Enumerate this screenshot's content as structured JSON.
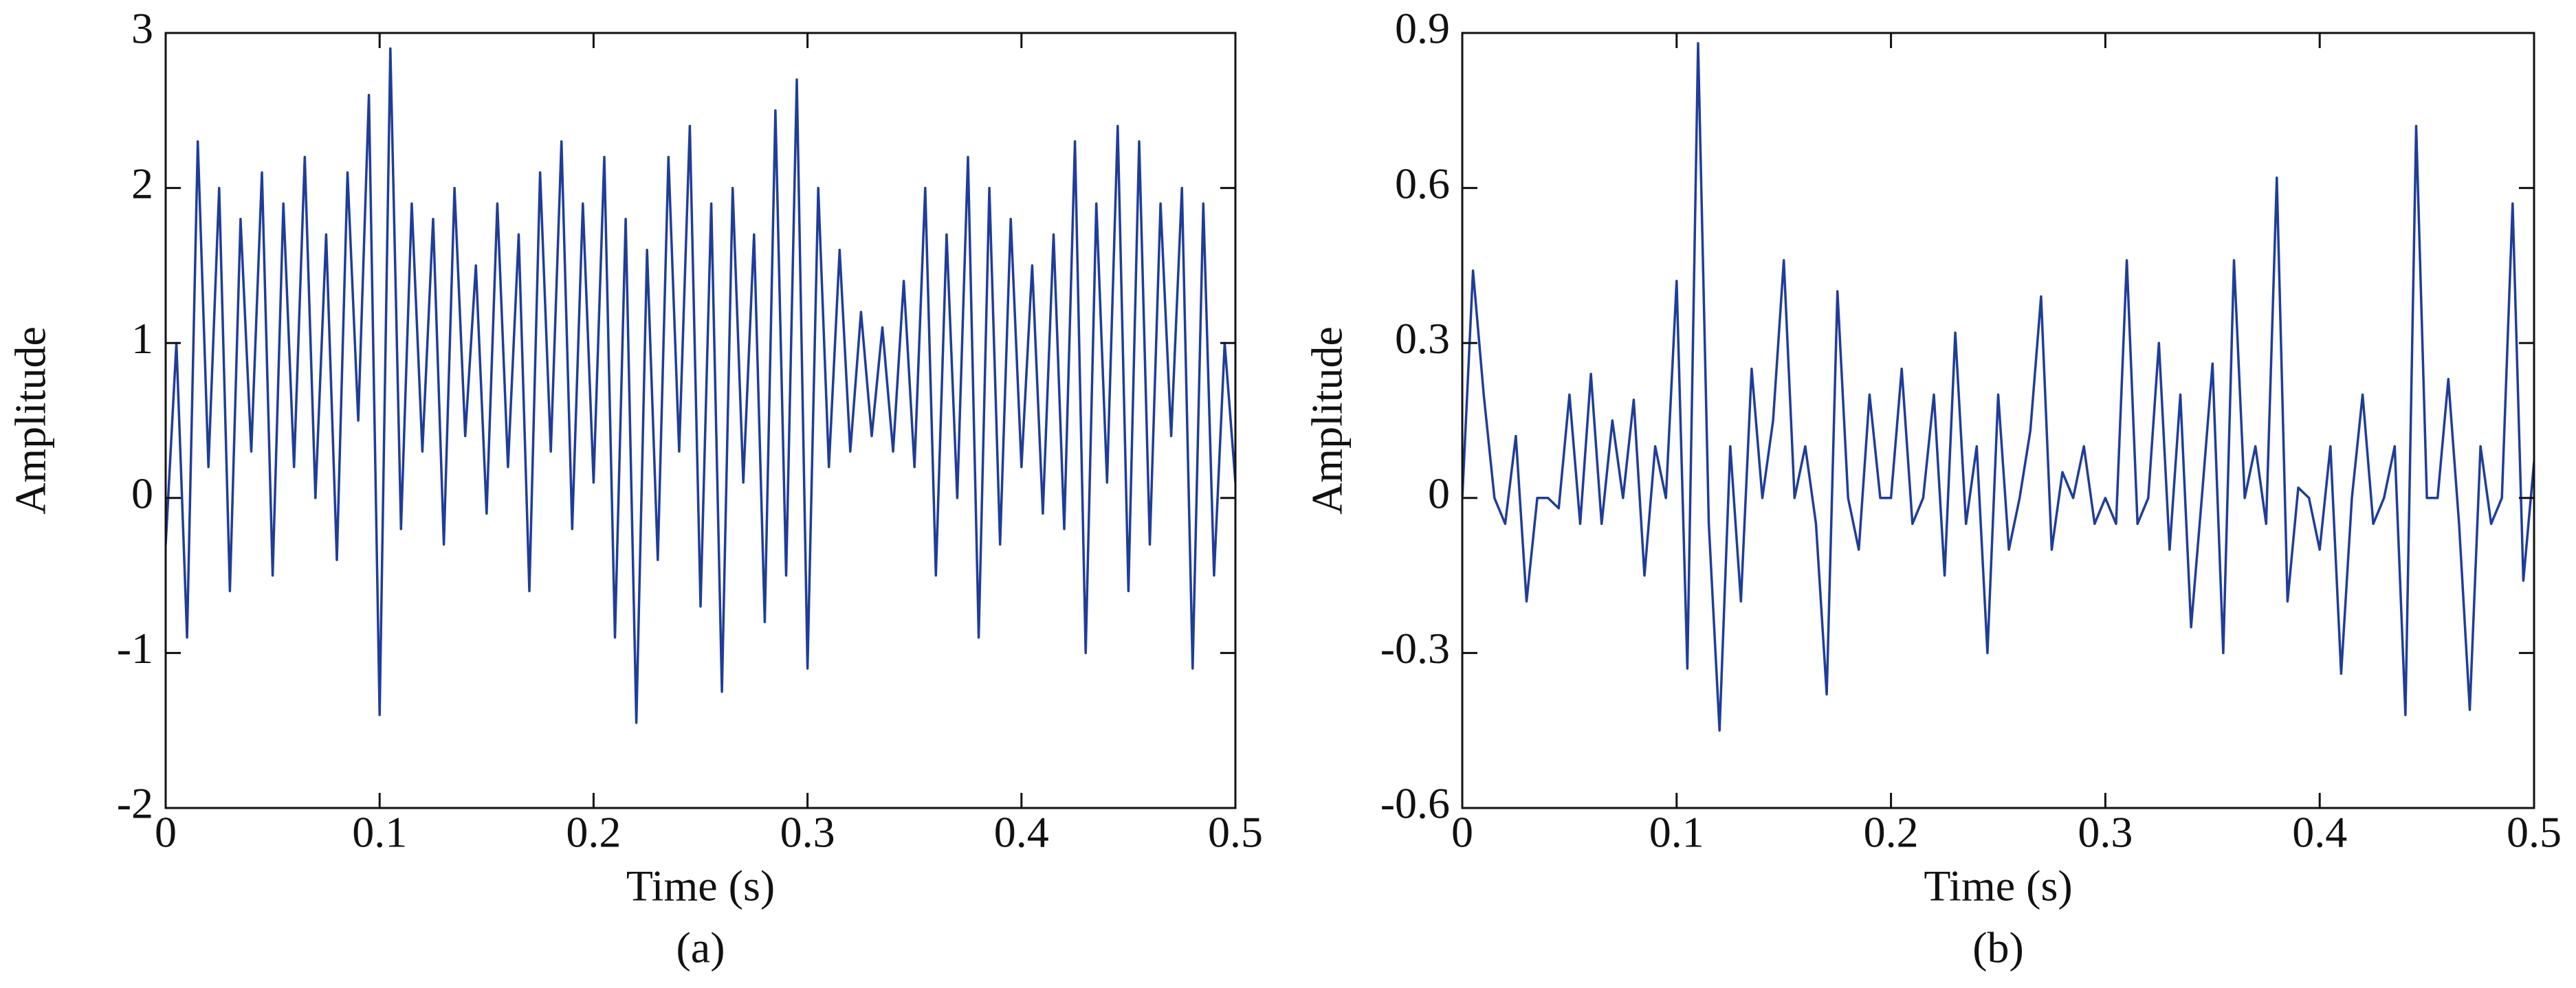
{
  "chart_data": [
    {
      "type": "line",
      "xlabel": "Time (s)",
      "ylabel": "Amplitude",
      "caption": "(a)",
      "color": "#1f3d99",
      "x": [
        0,
        0.005,
        0.01,
        0.015,
        0.02,
        0.025,
        0.03,
        0.035,
        0.04,
        0.045,
        0.05,
        0.055,
        0.06,
        0.065,
        0.07,
        0.075,
        0.08,
        0.085,
        0.09,
        0.095,
        0.1,
        0.105,
        0.11,
        0.115,
        0.12,
        0.125,
        0.13,
        0.135,
        0.14,
        0.145,
        0.15,
        0.155,
        0.16,
        0.165,
        0.17,
        0.175,
        0.18,
        0.185,
        0.19,
        0.195,
        0.2,
        0.205,
        0.21,
        0.215,
        0.22,
        0.225,
        0.23,
        0.235,
        0.24,
        0.245,
        0.25,
        0.255,
        0.26,
        0.265,
        0.27,
        0.275,
        0.28,
        0.285,
        0.29,
        0.295,
        0.3,
        0.305,
        0.31,
        0.315,
        0.32,
        0.325,
        0.33,
        0.335,
        0.34,
        0.345,
        0.35,
        0.355,
        0.36,
        0.365,
        0.37,
        0.375,
        0.38,
        0.385,
        0.39,
        0.395,
        0.4,
        0.405,
        0.41,
        0.415,
        0.42,
        0.425,
        0.43,
        0.435,
        0.44,
        0.445,
        0.45,
        0.455,
        0.46,
        0.465,
        0.47,
        0.475,
        0.48,
        0.485,
        0.49,
        0.495,
        0.5
      ],
      "values": [
        -0.3,
        1.0,
        -0.9,
        2.3,
        0.2,
        2.0,
        -0.6,
        1.8,
        0.3,
        2.1,
        -0.5,
        1.9,
        0.2,
        2.2,
        0.0,
        1.7,
        -0.4,
        2.1,
        0.5,
        2.6,
        -1.4,
        2.9,
        -0.2,
        1.9,
        0.3,
        1.8,
        -0.3,
        2.0,
        0.4,
        1.5,
        -0.1,
        1.9,
        0.2,
        1.7,
        -0.6,
        2.1,
        0.3,
        2.3,
        -0.2,
        1.9,
        0.1,
        2.2,
        -0.9,
        1.8,
        -1.45,
        1.6,
        -0.4,
        2.2,
        0.3,
        2.4,
        -0.7,
        1.9,
        -1.25,
        2.0,
        0.1,
        1.7,
        -0.8,
        2.5,
        -0.5,
        2.7,
        -1.1,
        2.0,
        0.2,
        1.6,
        0.3,
        1.2,
        0.4,
        1.1,
        0.3,
        1.4,
        0.2,
        2.0,
        -0.5,
        1.7,
        0.0,
        2.2,
        -0.9,
        2.0,
        -0.3,
        1.8,
        0.2,
        1.5,
        -0.1,
        1.7,
        -0.2,
        2.3,
        -1.0,
        1.9,
        0.1,
        2.4,
        -0.6,
        2.3,
        -0.3,
        1.9,
        0.4,
        2.0,
        -1.1,
        1.9,
        -0.5,
        1.0,
        0.1
      ],
      "xlim": [
        0,
        0.5
      ],
      "xticks": [
        0,
        0.1,
        0.2,
        0.3,
        0.4,
        0.5
      ],
      "ylim": [
        -2,
        3
      ],
      "yticks": [
        -2,
        -1,
        0,
        1,
        2,
        3
      ]
    },
    {
      "type": "line",
      "xlabel": "Time (s)",
      "ylabel": "Amplitude",
      "caption": "(b)",
      "color": "#1f3d99",
      "x": [
        0,
        0.005,
        0.01,
        0.015,
        0.02,
        0.025,
        0.03,
        0.035,
        0.04,
        0.045,
        0.05,
        0.055,
        0.06,
        0.065,
        0.07,
        0.075,
        0.08,
        0.085,
        0.09,
        0.095,
        0.1,
        0.105,
        0.11,
        0.115,
        0.12,
        0.125,
        0.13,
        0.135,
        0.14,
        0.145,
        0.15,
        0.155,
        0.16,
        0.165,
        0.17,
        0.175,
        0.18,
        0.185,
        0.19,
        0.195,
        0.2,
        0.205,
        0.21,
        0.215,
        0.22,
        0.225,
        0.23,
        0.235,
        0.24,
        0.245,
        0.25,
        0.255,
        0.26,
        0.265,
        0.27,
        0.275,
        0.28,
        0.285,
        0.29,
        0.295,
        0.3,
        0.305,
        0.31,
        0.315,
        0.32,
        0.325,
        0.33,
        0.335,
        0.34,
        0.345,
        0.35,
        0.355,
        0.36,
        0.365,
        0.37,
        0.375,
        0.38,
        0.385,
        0.39,
        0.395,
        0.4,
        0.405,
        0.41,
        0.415,
        0.42,
        0.425,
        0.43,
        0.435,
        0.44,
        0.445,
        0.45,
        0.455,
        0.46,
        0.465,
        0.47,
        0.475,
        0.48,
        0.485,
        0.49,
        0.495,
        0.5
      ],
      "values": [
        0,
        0.44,
        0.2,
        0.0,
        -0.05,
        0.12,
        -0.2,
        0.0,
        0.0,
        -0.02,
        0.2,
        -0.05,
        0.24,
        -0.05,
        0.15,
        0.0,
        0.19,
        -0.15,
        0.1,
        0.0,
        0.42,
        -0.33,
        0.88,
        -0.05,
        -0.45,
        0.1,
        -0.2,
        0.25,
        0.0,
        0.15,
        0.46,
        0.0,
        0.1,
        -0.05,
        -0.38,
        0.4,
        0.0,
        -0.1,
        0.2,
        0.0,
        0.0,
        0.25,
        -0.05,
        0.0,
        0.2,
        -0.15,
        0.32,
        -0.05,
        0.1,
        -0.3,
        0.2,
        -0.1,
        0.0,
        0.13,
        0.39,
        -0.1,
        0.05,
        0.0,
        0.1,
        -0.05,
        0.0,
        -0.05,
        0.46,
        -0.05,
        0.0,
        0.3,
        -0.1,
        0.2,
        -0.25,
        0.0,
        0.26,
        -0.3,
        0.46,
        0.0,
        0.1,
        -0.05,
        0.62,
        -0.2,
        0.02,
        0.0,
        -0.1,
        0.1,
        -0.34,
        0.0,
        0.2,
        -0.05,
        0.0,
        0.1,
        -0.42,
        0.72,
        0.0,
        0.0,
        0.23,
        -0.05,
        -0.41,
        0.1,
        -0.05,
        0.0,
        0.57,
        -0.16,
        0.07
      ],
      "xlim": [
        0,
        0.5
      ],
      "xticks": [
        0,
        0.1,
        0.2,
        0.3,
        0.4,
        0.5
      ],
      "ylim": [
        -0.6,
        0.9
      ],
      "yticks": [
        -0.6,
        -0.3,
        0,
        0.3,
        0.6,
        0.9
      ]
    }
  ]
}
